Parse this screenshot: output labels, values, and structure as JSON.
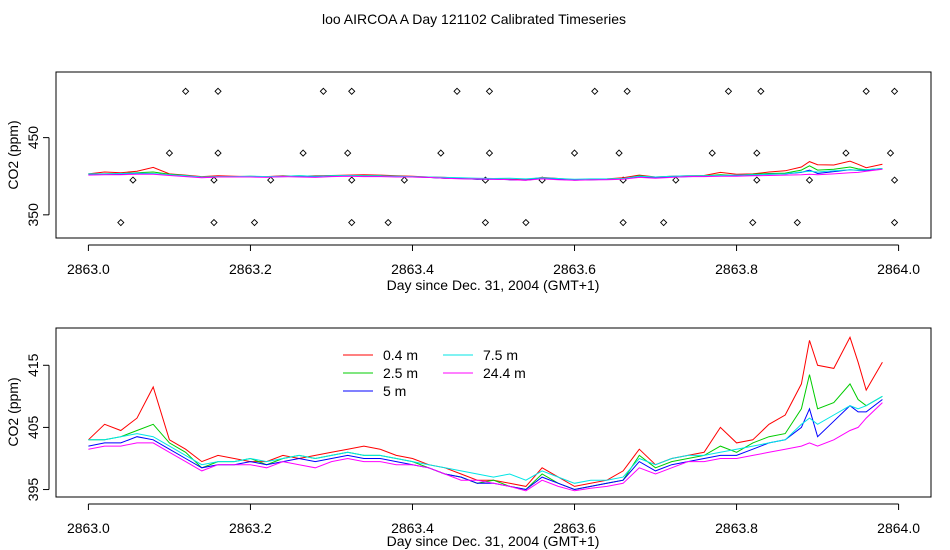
{
  "title": "loo AIRCOA A  Day 121102  Calibrated Timeseries",
  "chart_data": [
    {
      "type": "scatter",
      "xlabel": "Day since Dec. 31, 2004 (GMT+1)",
      "ylabel": "CO2 (ppm)",
      "xlim": [
        2862.96,
        2864.04
      ],
      "ylim": [
        320,
        535
      ],
      "x_ticks": [
        {
          "v": 2863.0,
          "label": "2863.0"
        },
        {
          "v": 2863.2,
          "label": "2863.2"
        },
        {
          "v": 2863.4,
          "label": "2863.4"
        },
        {
          "v": 2863.6,
          "label": "2863.6"
        },
        {
          "v": 2863.8,
          "label": "2863.8"
        },
        {
          "v": 2864.0,
          "label": "2864.0"
        }
      ],
      "y_ticks": [
        {
          "v": 350,
          "label": "350"
        },
        {
          "v": 450,
          "label": "450"
        }
      ],
      "markers": {
        "x": [
          2863.04,
          2863.055,
          2863.1,
          2863.12,
          2863.155,
          2863.155,
          2863.16,
          2863.16,
          2863.205,
          2863.225,
          2863.265,
          2863.29,
          2863.32,
          2863.325,
          2863.325,
          2863.325,
          2863.37,
          2863.39,
          2863.435,
          2863.455,
          2863.49,
          2863.49,
          2863.495,
          2863.495,
          2863.54,
          2863.56,
          2863.6,
          2863.625,
          2863.655,
          2863.66,
          2863.66,
          2863.665,
          2863.71,
          2863.725,
          2863.77,
          2863.79,
          2863.82,
          2863.825,
          2863.825,
          2863.83,
          2863.875,
          2863.89,
          2863.935,
          2863.96,
          2863.99,
          2863.995,
          2863.995,
          2863.995
        ],
        "y": [
          340,
          395,
          430,
          510,
          340,
          395,
          430,
          510,
          340,
          395,
          430,
          510,
          430,
          340,
          395,
          510,
          340,
          395,
          430,
          510,
          340,
          395,
          430,
          510,
          340,
          395,
          430,
          510,
          430,
          340,
          395,
          510,
          340,
          395,
          430,
          510,
          340,
          395,
          430,
          510,
          340,
          395,
          430,
          510,
          430,
          395,
          340,
          510
        ]
      },
      "series": [
        {
          "name": "0.4 m",
          "color": "#ff0000"
        },
        {
          "name": "2.5 m",
          "color": "#00cc00"
        },
        {
          "name": "5 m",
          "color": "#0000ff"
        },
        {
          "name": "7.5 m",
          "color": "#00e5e5"
        },
        {
          "name": "24.4 m",
          "color": "#ff00ff"
        }
      ]
    },
    {
      "type": "line",
      "xlabel": "Day since Dec. 31, 2004 (GMT+1)",
      "ylabel": "CO2 (ppm)",
      "xlim": [
        2862.96,
        2864.04
      ],
      "ylim": [
        393.8,
        421
      ],
      "x_ticks": [
        {
          "v": 2863.0,
          "label": "2863.0"
        },
        {
          "v": 2863.2,
          "label": "2863.2"
        },
        {
          "v": 2863.4,
          "label": "2863.4"
        },
        {
          "v": 2863.6,
          "label": "2863.6"
        },
        {
          "v": 2863.8,
          "label": "2863.8"
        },
        {
          "v": 2864.0,
          "label": "2864.0"
        }
      ],
      "y_ticks": [
        {
          "v": 395,
          "label": "395"
        },
        {
          "v": 405,
          "label": "405"
        },
        {
          "v": 415,
          "label": "415"
        }
      ],
      "legend": "top-center, two columns",
      "x": [
        2863.0,
        2863.02,
        2863.04,
        2863.06,
        2863.08,
        2863.1,
        2863.12,
        2863.14,
        2863.16,
        2863.18,
        2863.2,
        2863.22,
        2863.24,
        2863.26,
        2863.28,
        2863.3,
        2863.32,
        2863.34,
        2863.36,
        2863.38,
        2863.4,
        2863.42,
        2863.44,
        2863.46,
        2863.48,
        2863.5,
        2863.52,
        2863.54,
        2863.56,
        2863.58,
        2863.6,
        2863.62,
        2863.64,
        2863.66,
        2863.68,
        2863.7,
        2863.72,
        2863.74,
        2863.76,
        2863.78,
        2863.8,
        2863.82,
        2863.84,
        2863.86,
        2863.88,
        2863.89,
        2863.9,
        2863.92,
        2863.94,
        2863.95,
        2863.96,
        2863.98
      ],
      "series": [
        {
          "name": "0.4 m",
          "color": "#ff0000",
          "values": [
            403.0,
            405.5,
            404.5,
            406.5,
            411.5,
            403.0,
            401.5,
            399.5,
            400.5,
            400.0,
            399.5,
            399.5,
            400.5,
            400.0,
            400.5,
            401.0,
            401.5,
            402.0,
            401.5,
            400.5,
            400.0,
            399.0,
            398.5,
            397.5,
            396.5,
            396.5,
            396.0,
            395.5,
            398.5,
            397.0,
            395.5,
            396.0,
            396.5,
            398.0,
            401.5,
            399.0,
            400.0,
            400.5,
            401.0,
            405.0,
            402.5,
            403.0,
            405.5,
            407.0,
            412.0,
            419.0,
            415.0,
            414.5,
            419.5,
            415.5,
            411.0,
            415.5
          ]
        },
        {
          "name": "2.5 m",
          "color": "#00cc00",
          "values": [
            403.0,
            403.0,
            403.5,
            404.5,
            405.5,
            402.5,
            401.0,
            398.5,
            399.5,
            399.5,
            400.0,
            399.0,
            400.0,
            400.5,
            400.0,
            400.5,
            401.0,
            400.5,
            400.5,
            400.0,
            399.5,
            398.5,
            397.5,
            397.0,
            396.0,
            396.5,
            395.5,
            395.0,
            397.5,
            396.0,
            395.0,
            395.5,
            396.0,
            396.5,
            400.5,
            398.5,
            399.5,
            400.0,
            400.5,
            402.0,
            401.0,
            402.5,
            403.5,
            404.0,
            408.0,
            413.5,
            408.0,
            409.0,
            412.0,
            409.5,
            408.5,
            410.0
          ]
        },
        {
          "name": "5 m",
          "color": "#0000ff",
          "values": [
            402.0,
            402.5,
            402.5,
            403.5,
            403.0,
            401.5,
            400.0,
            398.5,
            399.0,
            399.0,
            399.5,
            399.0,
            399.5,
            400.0,
            399.5,
            400.0,
            400.5,
            400.0,
            400.0,
            399.5,
            399.0,
            398.5,
            397.5,
            397.0,
            396.0,
            396.0,
            395.5,
            395.0,
            397.0,
            396.0,
            395.0,
            395.5,
            396.0,
            396.5,
            399.5,
            398.0,
            399.0,
            399.5,
            400.0,
            400.5,
            400.5,
            401.5,
            402.5,
            403.0,
            405.0,
            408.0,
            403.5,
            406.0,
            408.5,
            407.5,
            407.5,
            409.5
          ]
        },
        {
          "name": "7.5 m",
          "color": "#00e5e5",
          "values": [
            403.0,
            403.0,
            403.5,
            404.0,
            403.5,
            402.0,
            400.5,
            399.0,
            399.5,
            399.5,
            400.0,
            399.5,
            400.0,
            400.5,
            400.0,
            400.5,
            401.0,
            400.5,
            400.5,
            400.0,
            399.5,
            399.0,
            398.5,
            398.0,
            397.5,
            397.0,
            397.5,
            396.5,
            398.0,
            397.0,
            396.0,
            396.5,
            396.5,
            397.0,
            400.0,
            399.0,
            400.0,
            400.5,
            400.5,
            401.0,
            401.5,
            402.0,
            402.5,
            403.0,
            405.5,
            406.5,
            405.5,
            407.0,
            408.5,
            408.0,
            408.5,
            410.0
          ]
        },
        {
          "name": "24.4 m",
          "color": "#ff00ff",
          "values": [
            401.5,
            402.0,
            402.0,
            402.5,
            402.5,
            401.0,
            399.5,
            398.0,
            399.0,
            399.0,
            399.0,
            398.5,
            399.5,
            399.0,
            398.5,
            399.5,
            400.0,
            399.5,
            399.5,
            399.0,
            399.0,
            398.5,
            397.5,
            396.5,
            396.5,
            396.0,
            395.5,
            394.8,
            396.5,
            395.5,
            394.8,
            395.2,
            395.5,
            396.0,
            398.5,
            397.5,
            398.5,
            399.5,
            399.5,
            400.0,
            400.0,
            400.5,
            401.0,
            401.5,
            402.0,
            402.5,
            402.0,
            403.0,
            404.5,
            405.0,
            406.5,
            409.0
          ]
        }
      ]
    }
  ]
}
